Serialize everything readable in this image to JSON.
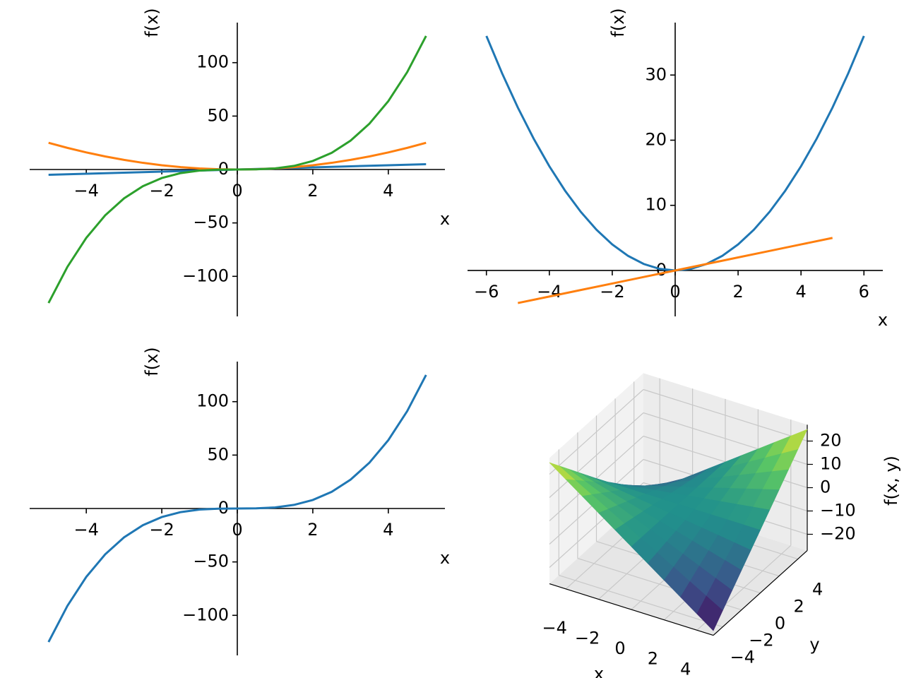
{
  "chart_data": [
    {
      "type": "line",
      "xlabel": "x",
      "ylabel": "f(x)",
      "xlim": [
        -5.5,
        5.5
      ],
      "ylim": [
        -137.5,
        137.5
      ],
      "xticks": [
        {
          "value": -4,
          "label": "−4"
        },
        {
          "value": -2,
          "label": "−2"
        },
        0,
        2,
        4
      ],
      "yticks": [
        {
          "value": -100,
          "label": "−100"
        },
        {
          "value": -50,
          "label": "−50"
        },
        0,
        50,
        100
      ],
      "series": [
        {
          "color": "#1f77b4",
          "x": [
            -5,
            -4,
            -3,
            -2,
            -1,
            0,
            1,
            2,
            3,
            4,
            5
          ],
          "values": [
            -5,
            -4,
            -3,
            -2,
            -1,
            0,
            1,
            2,
            3,
            4,
            5
          ]
        },
        {
          "color": "#ff7f0e",
          "x": [
            -5,
            -4.5,
            -4,
            -3.5,
            -3,
            -2.5,
            -2,
            -1.5,
            -1,
            -0.5,
            0,
            0.5,
            1,
            1.5,
            2,
            2.5,
            3,
            3.5,
            4,
            4.5,
            5
          ],
          "values": [
            25,
            20.25,
            16,
            12.25,
            9,
            6.25,
            4,
            2.25,
            1,
            0.25,
            0,
            0.25,
            1,
            2.25,
            4,
            6.25,
            9,
            12.25,
            16,
            20.25,
            25
          ]
        },
        {
          "color": "#2ca02c",
          "x": [
            -5,
            -4.5,
            -4,
            -3.5,
            -3,
            -2.5,
            -2,
            -1.5,
            -1,
            -0.5,
            0,
            0.5,
            1,
            1.5,
            2,
            2.5,
            3,
            3.5,
            4,
            4.5,
            5
          ],
          "values": [
            -125,
            -91.125,
            -64,
            -42.875,
            -27,
            -15.625,
            -8,
            -3.375,
            -1,
            -0.125,
            0,
            0.125,
            1,
            3.375,
            8,
            15.625,
            27,
            42.875,
            64,
            91.125,
            125
          ]
        }
      ]
    },
    {
      "type": "line",
      "xlabel": "x",
      "ylabel": "f(x)",
      "xlim": [
        -6.6,
        6.6
      ],
      "ylim": [
        -7.05,
        38.05
      ],
      "xticks": [
        {
          "value": -6,
          "label": "−6"
        },
        {
          "value": -4,
          "label": "−4"
        },
        {
          "value": -2,
          "label": "−2"
        },
        0,
        2,
        4,
        6
      ],
      "yticks": [
        0,
        10,
        20,
        30
      ],
      "series": [
        {
          "color": "#1f77b4",
          "x": [
            -6,
            -5.5,
            -5,
            -4.5,
            -4,
            -3.5,
            -3,
            -2.5,
            -2,
            -1.5,
            -1,
            -0.5,
            0,
            0.5,
            1,
            1.5,
            2,
            2.5,
            3,
            3.5,
            4,
            4.5,
            5,
            5.5,
            6
          ],
          "values": [
            36,
            30.25,
            25,
            20.25,
            16,
            12.25,
            9,
            6.25,
            4,
            2.25,
            1,
            0.25,
            0,
            0.25,
            1,
            2.25,
            4,
            6.25,
            9,
            12.25,
            16,
            20.25,
            25,
            30.25,
            36
          ]
        },
        {
          "color": "#ff7f0e",
          "x": [
            -5,
            -4,
            -3,
            -2,
            -1,
            0,
            1,
            2,
            3,
            4,
            5
          ],
          "values": [
            -5,
            -4,
            -3,
            -2,
            -1,
            0,
            1,
            2,
            3,
            4,
            5
          ]
        }
      ]
    },
    {
      "type": "line",
      "xlabel": "x",
      "ylabel": "f(x)",
      "xlim": [
        -5.5,
        5.5
      ],
      "ylim": [
        -137.5,
        137.5
      ],
      "xticks": [
        {
          "value": -4,
          "label": "−4"
        },
        {
          "value": -2,
          "label": "−2"
        },
        0,
        2,
        4
      ],
      "yticks": [
        {
          "value": -100,
          "label": "−100"
        },
        {
          "value": -50,
          "label": "−50"
        },
        0,
        50,
        100
      ],
      "series": [
        {
          "color": "#1f77b4",
          "x": [
            -5,
            -4.5,
            -4,
            -3.5,
            -3,
            -2.5,
            -2,
            -1.5,
            -1,
            -0.5,
            0,
            0.5,
            1,
            1.5,
            2,
            2.5,
            3,
            3.5,
            4,
            4.5,
            5
          ],
          "values": [
            -125,
            -91.125,
            -64,
            -42.875,
            -27,
            -15.625,
            -8,
            -3.375,
            -1,
            -0.125,
            0,
            0.125,
            1,
            3.375,
            8,
            15.625,
            27,
            42.875,
            64,
            91.125,
            125
          ]
        }
      ]
    },
    {
      "type": "surface",
      "xlabel": "x",
      "ylabel": "y",
      "zlabel": "f(x, y)",
      "colormap": "viridis",
      "xlim": [
        -5,
        5
      ],
      "ylim": [
        -5,
        5
      ],
      "zlim": [
        -27,
        27
      ],
      "xticks": [
        {
          "value": -4,
          "label": "−4"
        },
        {
          "value": -2,
          "label": "−2"
        },
        0,
        2,
        4
      ],
      "yticks": [
        {
          "value": -4,
          "label": "−4"
        },
        {
          "value": -2,
          "label": "−2"
        },
        0,
        2,
        4
      ],
      "zticks": [
        {
          "value": -20,
          "label": "−20"
        },
        {
          "value": -10,
          "label": "−10"
        },
        0,
        10,
        20
      ],
      "x": [
        -5,
        -4,
        -3,
        -2,
        -1,
        0,
        1,
        2,
        3,
        4,
        5
      ],
      "y": [
        -5,
        -4,
        -3,
        -2,
        -1,
        0,
        1,
        2,
        3,
        4,
        5
      ],
      "z": [
        [
          25,
          20,
          15,
          10,
          5,
          0,
          -5,
          -10,
          -15,
          -20,
          -25
        ],
        [
          20,
          16,
          12,
          8,
          4,
          0,
          -4,
          -8,
          -12,
          -16,
          -20
        ],
        [
          15,
          12,
          9,
          6,
          3,
          0,
          -3,
          -6,
          -9,
          -12,
          -15
        ],
        [
          10,
          8,
          6,
          4,
          2,
          0,
          -2,
          -4,
          -6,
          -8,
          -10
        ],
        [
          5,
          4,
          3,
          2,
          1,
          0,
          -1,
          -2,
          -3,
          -4,
          -5
        ],
        [
          0,
          0,
          0,
          0,
          0,
          0,
          0,
          0,
          0,
          0,
          0
        ],
        [
          -5,
          -4,
          -3,
          -2,
          -1,
          0,
          1,
          2,
          3,
          4,
          5
        ],
        [
          -10,
          -8,
          -6,
          -4,
          -2,
          0,
          2,
          4,
          6,
          8,
          10
        ],
        [
          -15,
          -12,
          -9,
          -6,
          -3,
          0,
          3,
          6,
          9,
          12,
          15
        ],
        [
          -20,
          -16,
          -12,
          -8,
          -4,
          0,
          4,
          8,
          12,
          16,
          20
        ],
        [
          -25,
          -20,
          -15,
          -10,
          -5,
          0,
          5,
          10,
          15,
          20,
          25
        ]
      ]
    }
  ]
}
